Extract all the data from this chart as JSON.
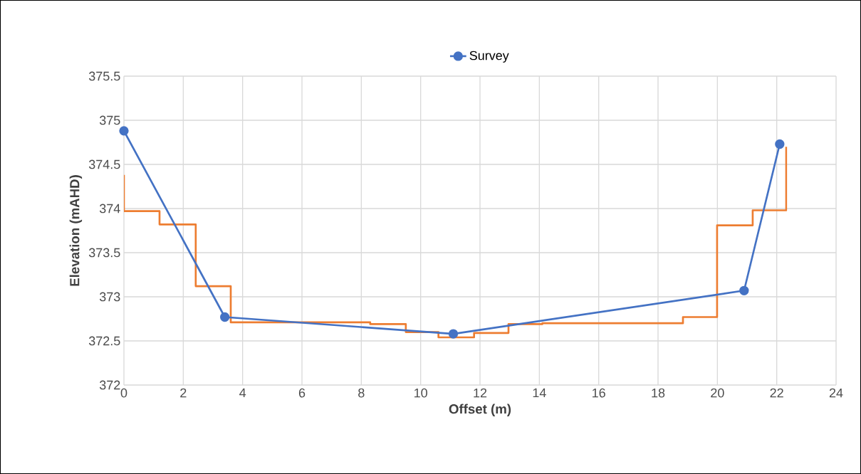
{
  "chart_data": {
    "type": "line",
    "xlabel": "Offset (m)",
    "ylabel": "Elevation (mAHD)",
    "xlim": [
      0,
      24
    ],
    "xticks": [
      0,
      2,
      4,
      6,
      8,
      10,
      12,
      14,
      16,
      18,
      20,
      22,
      24
    ],
    "ylim": [
      372,
      375.5
    ],
    "yticks": [
      372,
      372.5,
      373,
      373.5,
      374,
      374.5,
      375,
      375.5
    ],
    "grid": true,
    "legend": "top",
    "series": [
      {
        "type": "step",
        "color": "#ed7d31",
        "marker": "none",
        "x": [
          0,
          0,
          1.2,
          2.42,
          3.6,
          8.3,
          9.5,
          10.6,
          11.8,
          12.96,
          14.1,
          18.84,
          19.99,
          21.19,
          22.32
        ],
        "values": [
          374.38,
          373.97,
          373.82,
          373.12,
          372.71,
          372.69,
          372.6,
          372.54,
          372.59,
          372.69,
          372.7,
          372.77,
          373.81,
          373.98,
          374.7
        ]
      },
      {
        "name": "Survey",
        "color": "#4472c4",
        "marker": "circle",
        "x": [
          0,
          3.4,
          11.1,
          20.9,
          22.1
        ],
        "values": [
          374.88,
          372.77,
          372.58,
          373.07,
          374.73
        ]
      }
    ]
  }
}
